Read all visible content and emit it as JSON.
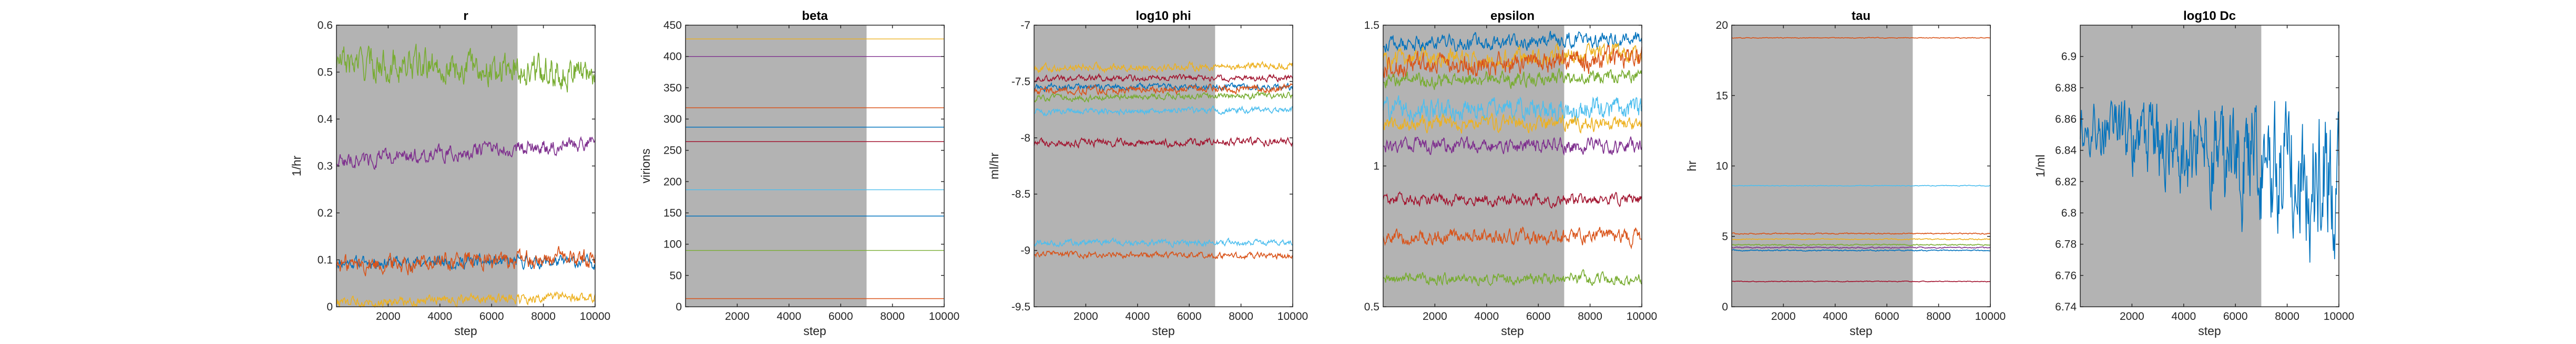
{
  "figure": {
    "colors": [
      "#0072BD",
      "#D95319",
      "#EDB120",
      "#7E2F8E",
      "#77AC30",
      "#4DBEEE",
      "#A2142F"
    ],
    "burnin_shade": "#b3b3b3"
  },
  "chart_data": [
    {
      "type": "line",
      "title": "r",
      "xlabel": "step",
      "ylabel": "1/hr",
      "xlim": [
        1,
        10000
      ],
      "ylim": [
        0,
        0.6
      ],
      "burnin_end": 7000,
      "xticks": [
        2000,
        4000,
        6000,
        8000,
        10000
      ],
      "xtick_labels": [
        "2000",
        "4000",
        "6000",
        "8000",
        "10000"
      ],
      "yticks": [
        0,
        0.1,
        0.2,
        0.3,
        0.4,
        0.5,
        0.6
      ],
      "ytick_labels": [
        "0",
        "0.1",
        "0.2",
        "0.3",
        "0.4",
        "0.5",
        "0.6"
      ],
      "series": [
        {
          "color": "#0072BD",
          "start": 0.095,
          "end": 0.095,
          "noise": 0.01
        },
        {
          "color": "#D95319",
          "start": 0.09,
          "end": 0.105,
          "noise": 0.015
        },
        {
          "color": "#EDB120",
          "start": 0.01,
          "end": 0.02,
          "noise": 0.008
        },
        {
          "color": "#7E2F8E",
          "start": 0.31,
          "end": 0.35,
          "noise": 0.012
        },
        {
          "color": "#77AC30",
          "start": 0.52,
          "end": 0.5,
          "noise": 0.025
        }
      ]
    },
    {
      "type": "line",
      "title": "beta",
      "xlabel": "step",
      "ylabel": "virions",
      "xlim": [
        1,
        10000
      ],
      "ylim": [
        0,
        450
      ],
      "burnin_end": 7000,
      "xticks": [
        2000,
        4000,
        6000,
        8000,
        10000
      ],
      "xtick_labels": [
        "2000",
        "4000",
        "6000",
        "8000",
        "10000"
      ],
      "yticks": [
        0,
        50,
        100,
        150,
        200,
        250,
        300,
        350,
        400,
        450
      ],
      "ytick_labels": [
        "0",
        "50",
        "100",
        "150",
        "200",
        "250",
        "300",
        "350",
        "400",
        "450"
      ],
      "series": [
        {
          "color": "#EDB120",
          "start": 428,
          "end": 428,
          "noise": 0
        },
        {
          "color": "#7E2F8E",
          "start": 400,
          "end": 400,
          "noise": 0
        },
        {
          "color": "#D95319",
          "start": 318,
          "end": 318,
          "noise": 0
        },
        {
          "color": "#0072BD",
          "start": 287,
          "end": 287,
          "noise": 0
        },
        {
          "color": "#A2142F",
          "start": 264,
          "end": 264,
          "noise": 0
        },
        {
          "color": "#4DBEEE",
          "start": 187,
          "end": 187,
          "noise": 0
        },
        {
          "color": "#0072BD",
          "start": 145,
          "end": 145,
          "noise": 0
        },
        {
          "color": "#77AC30",
          "start": 90,
          "end": 90,
          "noise": 0
        },
        {
          "color": "#D95319",
          "start": 13,
          "end": 13,
          "noise": 0
        }
      ]
    },
    {
      "type": "line",
      "title": "log10 phi",
      "xlabel": "step",
      "ylabel": "ml/hr",
      "xlim": [
        1,
        10000
      ],
      "ylim": [
        -9.5,
        -7
      ],
      "burnin_end": 7000,
      "xticks": [
        2000,
        4000,
        6000,
        8000,
        10000
      ],
      "xtick_labels": [
        "2000",
        "4000",
        "6000",
        "8000",
        "10000"
      ],
      "yticks": [
        -9.5,
        -9,
        -8.5,
        -8,
        -7.5,
        -7
      ],
      "ytick_labels": [
        "-9.5",
        "-9",
        "-8.5",
        "-8",
        "-7.5",
        "-7"
      ],
      "series": [
        {
          "color": "#EDB120",
          "start": -7.38,
          "end": -7.36,
          "noise": 0.025
        },
        {
          "color": "#A2142F",
          "start": -7.47,
          "end": -7.47,
          "noise": 0.02
        },
        {
          "color": "#0072BD",
          "start": -7.55,
          "end": -7.55,
          "noise": 0.02
        },
        {
          "color": "#D95319",
          "start": -7.58,
          "end": -7.56,
          "noise": 0.025
        },
        {
          "color": "#77AC30",
          "start": -7.65,
          "end": -7.62,
          "noise": 0.02
        },
        {
          "color": "#4DBEEE",
          "start": -7.77,
          "end": -7.75,
          "noise": 0.02
        },
        {
          "color": "#A2142F",
          "start": -8.05,
          "end": -8.03,
          "noise": 0.025
        },
        {
          "color": "#4DBEEE",
          "start": -8.93,
          "end": -8.93,
          "noise": 0.02
        },
        {
          "color": "#D95319",
          "start": -9.03,
          "end": -9.05,
          "noise": 0.02
        }
      ]
    },
    {
      "type": "line",
      "title": "epsilon",
      "xlabel": "step",
      "ylabel": "",
      "xlim": [
        1,
        10000
      ],
      "ylim": [
        0.5,
        1.5
      ],
      "burnin_end": 7000,
      "xticks": [
        2000,
        4000,
        6000,
        8000,
        10000
      ],
      "xtick_labels": [
        "2000",
        "4000",
        "6000",
        "8000",
        "10000"
      ],
      "yticks": [
        0.5,
        1,
        1.5
      ],
      "ytick_labels": [
        "0.5",
        "1",
        "1.5"
      ],
      "series": [
        {
          "color": "#0072BD",
          "start": 1.43,
          "end": 1.45,
          "noise": 0.02
        },
        {
          "color": "#EDB120",
          "start": 1.38,
          "end": 1.4,
          "noise": 0.025
        },
        {
          "color": "#D95319",
          "start": 1.35,
          "end": 1.38,
          "noise": 0.03
        },
        {
          "color": "#77AC30",
          "start": 1.3,
          "end": 1.32,
          "noise": 0.02
        },
        {
          "color": "#4DBEEE",
          "start": 1.2,
          "end": 1.2,
          "noise": 0.03
        },
        {
          "color": "#EDB120",
          "start": 1.15,
          "end": 1.15,
          "noise": 0.02
        },
        {
          "color": "#7E2F8E",
          "start": 1.07,
          "end": 1.07,
          "noise": 0.02
        },
        {
          "color": "#A2142F",
          "start": 0.88,
          "end": 0.88,
          "noise": 0.015
        },
        {
          "color": "#D95319",
          "start": 0.75,
          "end": 0.75,
          "noise": 0.02
        },
        {
          "color": "#77AC30",
          "start": 0.6,
          "end": 0.6,
          "noise": 0.015
        }
      ]
    },
    {
      "type": "line",
      "title": "tau",
      "xlabel": "step",
      "ylabel": "hr",
      "xlim": [
        1,
        10000
      ],
      "ylim": [
        0,
        20
      ],
      "burnin_end": 7000,
      "xticks": [
        2000,
        4000,
        6000,
        8000,
        10000
      ],
      "xtick_labels": [
        "2000",
        "4000",
        "6000",
        "8000",
        "10000"
      ],
      "yticks": [
        0,
        5,
        10,
        15,
        20
      ],
      "ytick_labels": [
        "0",
        "5",
        "10",
        "15",
        "20"
      ],
      "series": [
        {
          "color": "#D95319",
          "start": 19.1,
          "end": 19.1,
          "noise": 0.02
        },
        {
          "color": "#4DBEEE",
          "start": 8.6,
          "end": 8.6,
          "noise": 0.02
        },
        {
          "color": "#D95319",
          "start": 5.2,
          "end": 5.2,
          "noise": 0.03
        },
        {
          "color": "#EDB120",
          "start": 4.8,
          "end": 4.8,
          "noise": 0.03
        },
        {
          "color": "#77AC30",
          "start": 4.4,
          "end": 4.4,
          "noise": 0.03
        },
        {
          "color": "#0072BD",
          "start": 4.0,
          "end": 4.0,
          "noise": 0.03
        },
        {
          "color": "#7E2F8E",
          "start": 4.2,
          "end": 4.2,
          "noise": 0.03
        },
        {
          "color": "#A2142F",
          "start": 1.8,
          "end": 1.8,
          "noise": 0.02
        }
      ]
    },
    {
      "type": "line",
      "title": "log10 Dc",
      "xlabel": "step",
      "ylabel": "1/ml",
      "xlim": [
        1,
        10000
      ],
      "ylim": [
        6.74,
        6.92
      ],
      "burnin_end": 7000,
      "xticks": [
        2000,
        4000,
        6000,
        8000,
        10000
      ],
      "xtick_labels": [
        "2000",
        "4000",
        "6000",
        "8000",
        "10000"
      ],
      "yticks": [
        6.74,
        6.76,
        6.78,
        6.8,
        6.82,
        6.84,
        6.86,
        6.88,
        6.9
      ],
      "ytick_labels": [
        "6.74",
        "6.76",
        "6.78",
        "6.8",
        "6.82",
        "6.84",
        "6.86",
        "6.88",
        "6.9"
      ],
      "series": [
        {
          "color": "#0072BD",
          "start": 6.855,
          "end": 6.82,
          "noise": 0.012,
          "growth": 2.2
        }
      ]
    }
  ]
}
